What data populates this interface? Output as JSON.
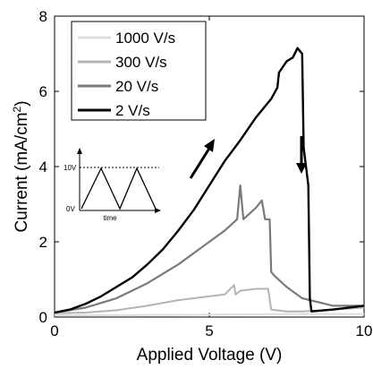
{
  "chart_data": {
    "type": "line",
    "title": "",
    "xlabel": "Applied Voltage (V)",
    "ylabel_main": "Current (mA/cm",
    "ylabel_sup": "2",
    "ylabel_close": ")",
    "xlim": [
      0,
      10
    ],
    "ylim": [
      0,
      8
    ],
    "xticks": [
      0,
      5,
      10
    ],
    "yticks": [
      0,
      2,
      4,
      6,
      8
    ],
    "grid": false,
    "legend_position": "top-left",
    "series": [
      {
        "name": "1000 V/s",
        "color": "#dedede",
        "points": [
          [
            0,
            0.05
          ],
          [
            2,
            0.05
          ],
          [
            4,
            0.06
          ],
          [
            6,
            0.07
          ],
          [
            8,
            0.08
          ],
          [
            10,
            0.08
          ]
        ]
      },
      {
        "name": "300 V/s",
        "color": "#b4b4b4",
        "points": [
          [
            0,
            0.1
          ],
          [
            1,
            0.12
          ],
          [
            2,
            0.18
          ],
          [
            3,
            0.3
          ],
          [
            4,
            0.45
          ],
          [
            5,
            0.55
          ],
          [
            5.5,
            0.6
          ],
          [
            5.8,
            0.85
          ],
          [
            5.85,
            0.6
          ],
          [
            6.0,
            0.7
          ],
          [
            6.5,
            0.75
          ],
          [
            6.9,
            0.75
          ],
          [
            7.0,
            0.2
          ],
          [
            7.5,
            0.15
          ],
          [
            8,
            0.15
          ],
          [
            9,
            0.2
          ],
          [
            10,
            0.25
          ]
        ]
      },
      {
        "name": "20 V/s",
        "color": "#7a7a7a",
        "points": [
          [
            0,
            0.12
          ],
          [
            1,
            0.25
          ],
          [
            2,
            0.5
          ],
          [
            3,
            0.9
          ],
          [
            4,
            1.4
          ],
          [
            5,
            2.0
          ],
          [
            5.5,
            2.3
          ],
          [
            5.9,
            2.6
          ],
          [
            6.0,
            3.5
          ],
          [
            6.1,
            2.6
          ],
          [
            6.5,
            2.9
          ],
          [
            6.7,
            3.1
          ],
          [
            6.8,
            2.6
          ],
          [
            6.95,
            2.6
          ],
          [
            7.0,
            1.2
          ],
          [
            7.1,
            1.1
          ],
          [
            7.5,
            0.8
          ],
          [
            8,
            0.5
          ],
          [
            9,
            0.3
          ],
          [
            10,
            0.3
          ]
        ]
      },
      {
        "name": "2 V/s",
        "color": "#000000",
        "points": [
          [
            0,
            0.12
          ],
          [
            0.5,
            0.2
          ],
          [
            1,
            0.35
          ],
          [
            1.5,
            0.55
          ],
          [
            2,
            0.8
          ],
          [
            2.5,
            1.05
          ],
          [
            3,
            1.4
          ],
          [
            3.5,
            1.8
          ],
          [
            4,
            2.3
          ],
          [
            4.5,
            2.85
          ],
          [
            5,
            3.5
          ],
          [
            5.5,
            4.15
          ],
          [
            6,
            4.7
          ],
          [
            6.5,
            5.3
          ],
          [
            7,
            5.8
          ],
          [
            7.2,
            6.1
          ],
          [
            7.25,
            6.5
          ],
          [
            7.5,
            6.8
          ],
          [
            7.7,
            6.9
          ],
          [
            7.85,
            7.15
          ],
          [
            8.0,
            7.0
          ],
          [
            8.05,
            4.5
          ],
          [
            8.2,
            3.5
          ],
          [
            8.25,
            0.5
          ],
          [
            8.3,
            0.15
          ],
          [
            9,
            0.2
          ],
          [
            10,
            0.3
          ]
        ]
      }
    ]
  },
  "inset": {
    "y_top_label": "10V",
    "y_bottom_label": "0V",
    "x_label": "time"
  }
}
